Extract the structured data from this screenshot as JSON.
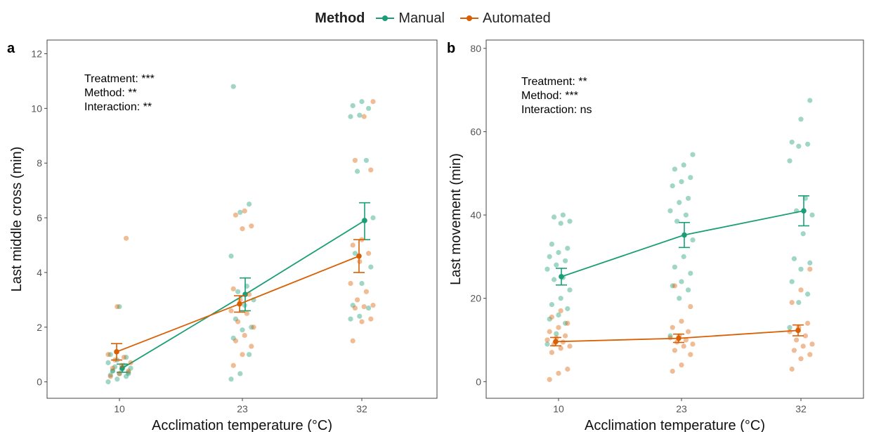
{
  "legend": {
    "title": "Method",
    "items": [
      {
        "label": "Manual",
        "color": "#1b9e77"
      },
      {
        "label": "Automated",
        "color": "#d95f02"
      }
    ]
  },
  "chart_data": [
    {
      "panel": "a",
      "type": "scatter",
      "xlabel": "Acclimation temperature (°C)",
      "ylabel": "Last middle cross (min)",
      "categories": [
        "10",
        "23",
        "32"
      ],
      "ylim": [
        -0.6,
        12.5
      ],
      "yticks": [
        0,
        2,
        4,
        6,
        8,
        10,
        12
      ],
      "grid": false,
      "annotations": [
        "Treatment: ***",
        "Method: **",
        "Interaction: **"
      ],
      "series": [
        {
          "name": "Manual",
          "color": "#1b9e77",
          "means": [
            0.5,
            3.2,
            5.9
          ],
          "err_low": [
            0.35,
            2.6,
            5.2
          ],
          "err_high": [
            0.65,
            3.8,
            6.55
          ],
          "points": [
            {
              "x": "10",
              "y": [
                0.0,
                0.1,
                0.2,
                0.25,
                0.3,
                0.35,
                0.4,
                0.45,
                0.5,
                0.55,
                0.6,
                0.7,
                0.8,
                0.9,
                1.0,
                2.75,
                0.3,
                0.4
              ]
            },
            {
              "x": "23",
              "y": [
                0.1,
                0.3,
                1.0,
                1.6,
                1.9,
                2.0,
                2.3,
                2.8,
                3.0,
                3.3,
                3.5,
                4.6,
                6.2,
                6.5,
                10.8
              ]
            },
            {
              "x": "32",
              "y": [
                2.3,
                2.4,
                2.7,
                2.8,
                3.6,
                4.2,
                4.7,
                5.9,
                6.0,
                7.7,
                8.1,
                9.7,
                9.75,
                10.0,
                10.1,
                10.25
              ]
            }
          ]
        },
        {
          "name": "Automated",
          "color": "#d95f02",
          "means": [
            1.1,
            2.85,
            4.6
          ],
          "err_low": [
            0.8,
            2.55,
            4.0
          ],
          "err_high": [
            1.4,
            3.15,
            5.2
          ],
          "points": [
            {
              "x": "10",
              "y": [
                0.2,
                0.3,
                0.4,
                0.5,
                0.6,
                0.7,
                0.8,
                0.9,
                1.0,
                2.75,
                5.25
              ]
            },
            {
              "x": "23",
              "y": [
                0.6,
                1.0,
                1.3,
                1.5,
                1.7,
                2.0,
                2.2,
                2.5,
                2.6,
                3.0,
                3.2,
                3.4,
                5.6,
                5.7,
                6.1,
                6.25
              ]
            },
            {
              "x": "32",
              "y": [
                1.5,
                2.2,
                2.3,
                2.7,
                2.75,
                2.8,
                3.0,
                3.3,
                3.6,
                4.4,
                4.7,
                5.0,
                5.2,
                7.75,
                8.1,
                9.7,
                10.25
              ]
            }
          ]
        }
      ]
    },
    {
      "panel": "b",
      "type": "scatter",
      "xlabel": "Acclimation temperature (°C)",
      "ylabel": "Last movement (min)",
      "categories": [
        "10",
        "23",
        "32"
      ],
      "ylim": [
        -4,
        82
      ],
      "yticks": [
        0,
        20,
        40,
        60,
        80
      ],
      "grid": false,
      "annotations": [
        "Treatment: **",
        "Method: ***",
        "Interaction: ns"
      ],
      "series": [
        {
          "name": "Manual",
          "color": "#1b9e77",
          "means": [
            25.2,
            35.2,
            41.0
          ],
          "err_low": [
            23.2,
            32.2,
            37.4
          ],
          "err_high": [
            27.2,
            38.2,
            44.6
          ],
          "points": [
            {
              "x": "10",
              "y": [
                9.0,
                11.5,
                14.0,
                15.0,
                16.0,
                17.5,
                18.5,
                20.0,
                22.0,
                24.5,
                25.0,
                27.0,
                28.0,
                29.0,
                30.0,
                31.0,
                32.0,
                33.0,
                38.0,
                38.5,
                39.5,
                40.0
              ]
            },
            {
              "x": "23",
              "y": [
                11.0,
                20.0,
                22.0,
                23.0,
                24.0,
                26.0,
                27.5,
                30.0,
                34.0,
                38.5,
                40.0,
                41.0,
                43.0,
                44.0,
                47.0,
                48.0,
                49.0,
                51.0,
                52.0,
                54.5
              ]
            },
            {
              "x": "32",
              "y": [
                13.0,
                19.0,
                21.0,
                24.0,
                27.0,
                28.5,
                29.5,
                35.5,
                40.0,
                41.0,
                44.0,
                53.0,
                56.5,
                57.0,
                57.5,
                63.0,
                67.5
              ]
            }
          ]
        },
        {
          "name": "Automated",
          "color": "#d95f02",
          "means": [
            9.6,
            10.4,
            12.3
          ],
          "err_low": [
            8.6,
            9.4,
            11.0
          ],
          "err_high": [
            10.6,
            11.4,
            13.6
          ],
          "points": [
            {
              "x": "10",
              "y": [
                0.5,
                2.0,
                3.0,
                7.0,
                8.0,
                8.5,
                9.0,
                9.5,
                10.0,
                10.5,
                11.0,
                12.0,
                13.0,
                14.0,
                15.5,
                17.0
              ]
            },
            {
              "x": "23",
              "y": [
                2.5,
                4.0,
                6.5,
                7.5,
                8.5,
                9.0,
                9.5,
                10.0,
                10.5,
                11.0,
                12.0,
                13.0,
                14.5,
                18.0,
                23.0
              ]
            },
            {
              "x": "32",
              "y": [
                3.0,
                5.5,
                6.5,
                7.5,
                8.5,
                9.0,
                10.0,
                11.0,
                12.0,
                13.0,
                14.0,
                19.0,
                22.0,
                27.0
              ]
            }
          ]
        }
      ]
    }
  ]
}
